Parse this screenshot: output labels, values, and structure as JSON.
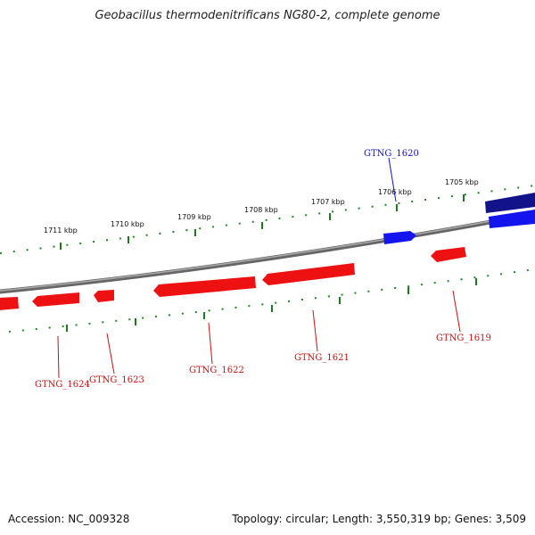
{
  "title": "Geobacillus thermodenitrificans NG80-2, complete genome",
  "footer": {
    "accession": "Accession: NC_009328",
    "summary": "Topology: circular; Length: 3,550,319 bp; Genes: 3,509"
  },
  "colors": {
    "forward_gene": "#1212ee",
    "forward_gene_selected": "#10107a",
    "reverse_gene": "#ee1111",
    "forward_label": "#1111cc",
    "reverse_label": "#cc1111",
    "backbone": "#808080",
    "ticks": "#137a13"
  },
  "scale_labels": [
    "1711 kbp",
    "1710 kbp",
    "1709 kbp",
    "1708 kbp",
    "1707 kbp",
    "1706 kbp",
    "1705 kbp"
  ],
  "genes": [
    {
      "name": "GTNG_1620",
      "strand": "forward"
    },
    {
      "name": "GTNG_1624",
      "strand": "reverse"
    },
    {
      "name": "GTNG_1623",
      "strand": "reverse"
    },
    {
      "name": "GTNG_1622",
      "strand": "reverse"
    },
    {
      "name": "GTNG_1621",
      "strand": "reverse"
    },
    {
      "name": "GTNG_1619",
      "strand": "reverse"
    }
  ]
}
